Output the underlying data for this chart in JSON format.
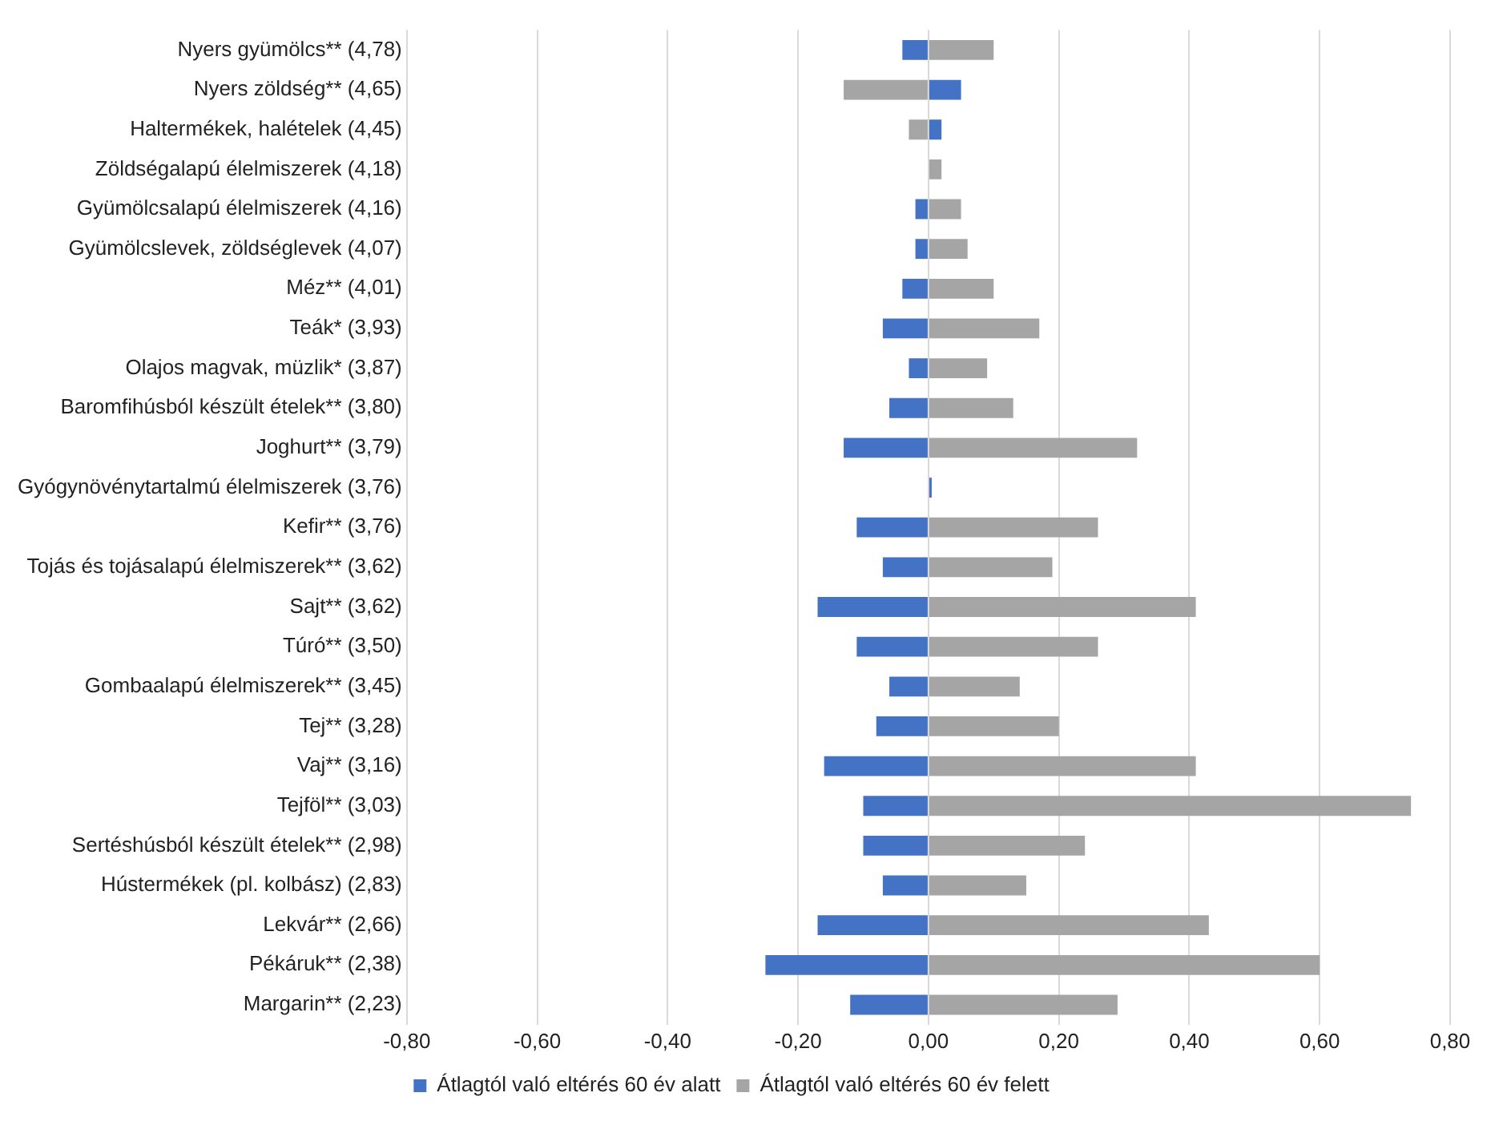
{
  "chart_data": {
    "type": "bar",
    "orientation": "horizontal",
    "stacked": true,
    "grid": "x",
    "legend": "bottom",
    "categories": [
      "Nyers gyümölcs** (4,78)",
      "Nyers zöldség** (4,65)",
      "Haltermékek, halételek (4,45)",
      "Zöldségalapú élelmiszerek (4,18)",
      "Gyümölcsalapú élelmiszerek (4,16)",
      "Gyümölcslevek, zöldséglevek (4,07)",
      "Méz** (4,01)",
      "Teák* (3,93)",
      "Olajos magvak, müzlik* (3,87)",
      "Baromfihúsból készült ételek** (3,80)",
      "Joghurt** (3,79)",
      "Gyógynövénytartalmú élelmiszerek (3,76)",
      "Kefir** (3,76)",
      "Tojás és tojásalapú élelmiszerek** (3,62)",
      "Sajt** (3,62)",
      "Túró** (3,50)",
      "Gombaalapú élelmiszerek** (3,45)",
      "Tej** (3,28)",
      "Vaj** (3,16)",
      "Tejföl** (3,03)",
      "Sertéshúsból készült ételek** (2,98)",
      "Hústermékek (pl. kolbász) (2,83)",
      "Lekvár** (2,66)",
      "Pékáruk** (2,38)",
      "Margarin** (2,23)"
    ],
    "series": [
      {
        "name": "Átlagtól való eltérés 60 év alatt",
        "color": "#4472c4",
        "values": [
          -0.04,
          0.05,
          0.02,
          0,
          -0.02,
          -0.02,
          -0.04,
          -0.07,
          -0.03,
          -0.06,
          -0.13,
          0.005,
          -0.11,
          -0.07,
          -0.17,
          -0.11,
          -0.06,
          -0.08,
          -0.16,
          -0.1,
          -0.1,
          -0.07,
          -0.17,
          -0.25,
          -0.12
        ]
      },
      {
        "name": "Átlagtól való eltérés 60 év felett",
        "color": "#a5a5a5",
        "values": [
          0.1,
          -0.13,
          -0.03,
          0.02,
          0.05,
          0.06,
          0.1,
          0.17,
          0.09,
          0.13,
          0.32,
          0,
          0.26,
          0.19,
          0.41,
          0.26,
          0.14,
          0.2,
          0.41,
          0.74,
          0.24,
          0.15,
          0.43,
          0.6,
          0.29
        ]
      }
    ],
    "xlim": [
      -0.8,
      0.8
    ],
    "xticks": [
      {
        "value": -0.8,
        "label": "-0,80"
      },
      {
        "value": -0.6,
        "label": "-0,60"
      },
      {
        "value": -0.4,
        "label": "-0,40"
      },
      {
        "value": -0.2,
        "label": "-0,20"
      },
      {
        "value": 0,
        "label": "0,00"
      },
      {
        "value": 0.2,
        "label": "0,20"
      },
      {
        "value": 0.4,
        "label": "0,40"
      },
      {
        "value": 0.6,
        "label": "0,60"
      },
      {
        "value": 0.8,
        "label": "0,80"
      }
    ]
  }
}
